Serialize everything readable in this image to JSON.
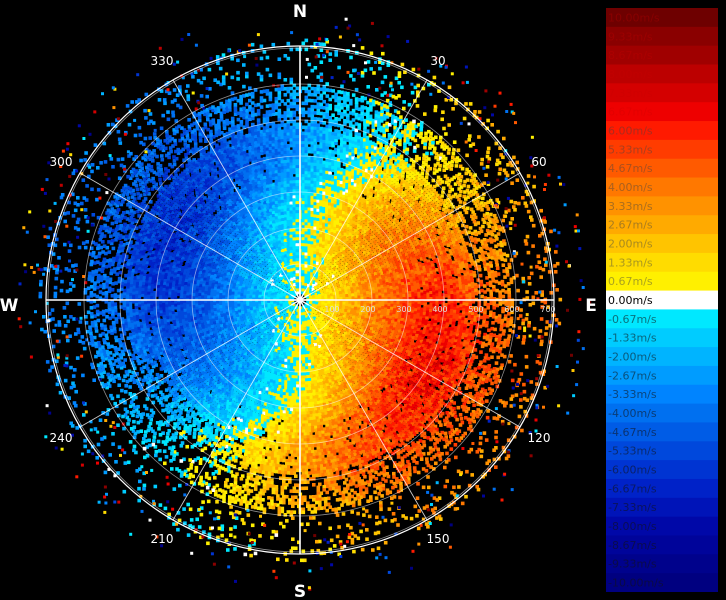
{
  "cardinals": {
    "north": "N",
    "south": "S",
    "east": "E",
    "west": "W"
  },
  "bearings": [
    "30",
    "60",
    "120",
    "150",
    "210",
    "240",
    "300",
    "330"
  ],
  "bearing_angles": [
    30,
    60,
    120,
    150,
    210,
    240,
    300,
    330
  ],
  "range_labels": [
    "100",
    "200",
    "300",
    "400",
    "500",
    "600",
    "700"
  ],
  "range_values": [
    100,
    200,
    300,
    400,
    500,
    600,
    700
  ],
  "legend": {
    "entries": [
      {
        "label": "10.00m/s",
        "color": "#6e0000"
      },
      {
        "label": "9.33m/s",
        "color": "#8a0000"
      },
      {
        "label": "8.67m/s",
        "color": "#a00000"
      },
      {
        "label": "8.00m/s",
        "color": "#bc0000"
      },
      {
        "label": "7.33m/s",
        "color": "#d40000"
      },
      {
        "label": "6.67m/s",
        "color": "#ee0000"
      },
      {
        "label": "6.00m/s",
        "color": "#ff1a00"
      },
      {
        "label": "5.33m/s",
        "color": "#ff3c00"
      },
      {
        "label": "4.67m/s",
        "color": "#ff5a00"
      },
      {
        "label": "4.00m/s",
        "color": "#ff7800"
      },
      {
        "label": "3.33m/s",
        "color": "#ff9200"
      },
      {
        "label": "2.67m/s",
        "color": "#ffaa00"
      },
      {
        "label": "2.00m/s",
        "color": "#ffc400"
      },
      {
        "label": "1.33m/s",
        "color": "#ffdc00"
      },
      {
        "label": "0.67m/s",
        "color": "#fff000"
      },
      {
        "label": "0.00m/s",
        "color": "#ffffff"
      },
      {
        "label": "-0.67m/s",
        "color": "#00e8ff"
      },
      {
        "label": "-1.33m/s",
        "color": "#00ccff"
      },
      {
        "label": "-2.00m/s",
        "color": "#00b4ff"
      },
      {
        "label": "-2.67m/s",
        "color": "#009cff"
      },
      {
        "label": "-3.33m/s",
        "color": "#0084ff"
      },
      {
        "label": "-4.00m/s",
        "color": "#0070f0"
      },
      {
        "label": "-4.67m/s",
        "color": "#005ce6"
      },
      {
        "label": "-5.33m/s",
        "color": "#0048dc"
      },
      {
        "label": "-6.00m/s",
        "color": "#0034d2"
      },
      {
        "label": "-6.67m/s",
        "color": "#0022c8"
      },
      {
        "label": "-7.33m/s",
        "color": "#0014b8"
      },
      {
        "label": "-8.00m/s",
        "color": "#0008a8"
      },
      {
        "label": "-8.67m/s",
        "color": "#00049a"
      },
      {
        "label": "-9.33m/s",
        "color": "#00028c"
      },
      {
        "label": "-10.00m/s",
        "color": "#000080"
      }
    ]
  },
  "colors": {
    "background": "#000000",
    "grid": "#ffffff",
    "approaching": "#1e78dc",
    "receding": "#e65a14"
  }
}
